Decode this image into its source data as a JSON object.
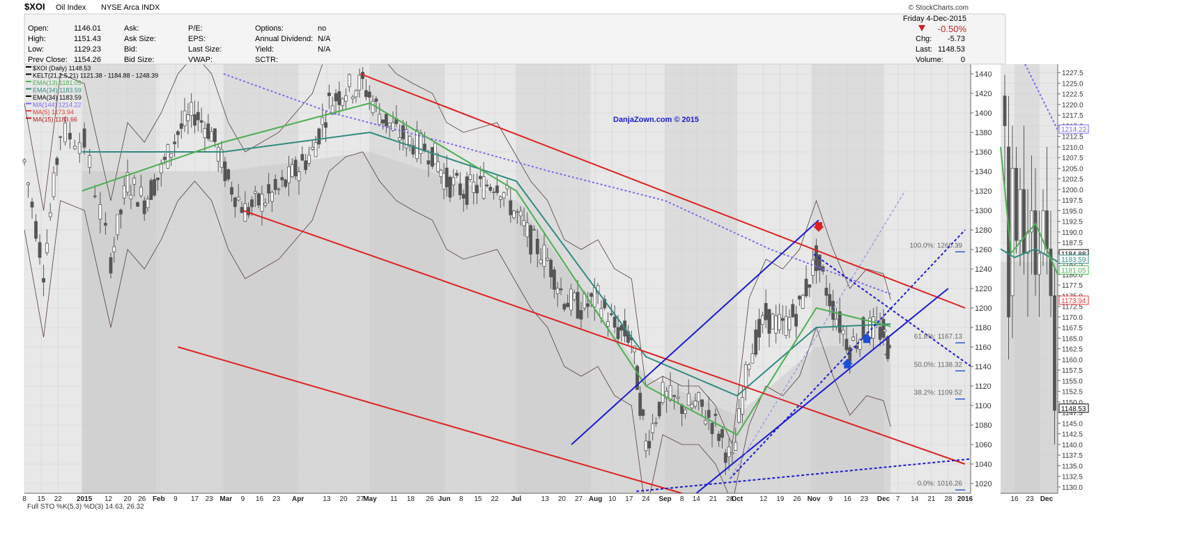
{
  "header": {
    "symbol": "$XOI",
    "name": "Oil Index",
    "exchange": "NYSE Arca INDX",
    "source": "© StockCharts.com",
    "date": "Friday  4-Dec-2015",
    "change_pct": "-0.50%",
    "fields_left": [
      {
        "label": "Open:",
        "value": "1146.01"
      },
      {
        "label": "High:",
        "value": "1151.43"
      },
      {
        "label": "Low:",
        "value": "1129.23"
      },
      {
        "label": "Prev Close:",
        "value": "1154.26"
      }
    ],
    "fields_mid1": [
      {
        "label": "Ask:",
        "value": ""
      },
      {
        "label": "Ask Size:",
        "value": ""
      },
      {
        "label": "Bid:",
        "value": ""
      },
      {
        "label": "Bid Size:",
        "value": ""
      }
    ],
    "fields_mid2": [
      {
        "label": "P/E:",
        "value": ""
      },
      {
        "label": "EPS:",
        "value": ""
      },
      {
        "label": "Last Size:",
        "value": ""
      },
      {
        "label": "VWAP:",
        "value": ""
      }
    ],
    "fields_mid3": [
      {
        "label": "Options:",
        "value": "no"
      },
      {
        "label": "Annual Dividend:",
        "value": "N/A"
      },
      {
        "label": "Yield:",
        "value": "N/A"
      },
      {
        "label": "SCTR:",
        "value": ""
      }
    ],
    "fields_right": [
      {
        "label": "Chg:",
        "value": "-5.73"
      },
      {
        "label": "Last:",
        "value": "1148.53"
      },
      {
        "label": "Volume:",
        "value": "0"
      }
    ]
  },
  "watermark": "DanjaZown.com © 2015",
  "legend": [
    {
      "text": "$XOI (Daily) 1148.53",
      "color": "#000000"
    },
    {
      "text": "KELT(21,2.5,21) 1121.38 - 1184.88 - 1248.39",
      "color": "#000000"
    },
    {
      "text": "EMA(13) 1181.05",
      "color": "#4caf50"
    },
    {
      "text": "EMA(34) 1183.59",
      "color": "#2e8b7f"
    },
    {
      "text": "EMA(34) 1183.59",
      "color": "#000000"
    },
    {
      "text": "MA(144) 1214.22",
      "color": "#7b68ee"
    },
    {
      "text": "MA(5) 1173.94",
      "color": "#e53935"
    },
    {
      "text": "MA(15) 1183.66",
      "color": "#b71c1c"
    }
  ],
  "fib_labels": [
    {
      "text": "100.0%: 1260.39",
      "value": 1260.39
    },
    {
      "text": "61.8%: 1167.13",
      "value": 1167.13
    },
    {
      "text": "50.0%: 1138.32",
      "value": 1138.32
    },
    {
      "text": "38.2%: 1109.52",
      "value": 1109.52
    },
    {
      "text": "0.0%: 1016.26",
      "value": 1016.26
    }
  ],
  "x_tick_labels": [
    "8",
    "15",
    "22",
    "2015",
    "12",
    "20",
    "26",
    "Feb",
    "9",
    "17",
    "23",
    "Mar",
    "9",
    "16",
    "23",
    "Apr",
    "13",
    "20",
    "27",
    "May",
    "11",
    "18",
    "26",
    "Jun",
    "8",
    "15",
    "22",
    "Jul",
    "13",
    "20",
    "27",
    "Aug",
    "10",
    "17",
    "24",
    "Sep",
    "8",
    "14",
    "21",
    "28",
    "Oct",
    "12",
    "19",
    "26",
    "Nov",
    "9",
    "16",
    "23",
    "Dec",
    "7",
    "14",
    "21",
    "28",
    "2016"
  ],
  "bottom_label": "Full STO %K(5,3) %D(3) 14.63, 26.32",
  "inset": {
    "x_tick_labels": [
      "16",
      "23",
      "Dec"
    ],
    "y_ticks": [
      "1227.5",
      "1225.0",
      "1222.5",
      "1220.0",
      "1217.5",
      "1215.0",
      "1212.5",
      "1210.0",
      "1207.5",
      "1205.0",
      "1202.5",
      "1200.0",
      "1197.5",
      "1195.0",
      "1192.5",
      "1190.0",
      "1187.5",
      "1185.0",
      "1182.5",
      "1180.0",
      "1177.5",
      "1175.0",
      "1172.5",
      "1170.0",
      "1167.5",
      "1165.0",
      "1162.5",
      "1160.0",
      "1157.5",
      "1155.0",
      "1152.5",
      "1150.0",
      "1147.5",
      "1145.0",
      "1142.5",
      "1140.0",
      "1137.5",
      "1135.0",
      "1132.5",
      "1130.0"
    ],
    "ymin": 1128.5,
    "ymax": 1229.5,
    "tags": [
      {
        "text": "1214.22",
        "value": 1214.22,
        "color": "#7b68ee"
      },
      {
        "text": "1184.88",
        "value": 1184.88,
        "color": "#000000"
      },
      {
        "text": "1183.59",
        "value": 1183.59,
        "color": "#2e8b7f"
      },
      {
        "text": "1181.05",
        "value": 1181.05,
        "color": "#4caf50"
      },
      {
        "text": "1173.94",
        "value": 1173.94,
        "color": "#e53935"
      },
      {
        "text": "1148.53",
        "value": 1148.53,
        "color": "#000000"
      }
    ]
  },
  "colors": {
    "bg_shade": "#e8e8e8",
    "bg_dark": "#c8c8c8",
    "candle": "#555555",
    "channel_red": "#e02020",
    "channel_blue": "#1a1ad6",
    "ema13": "#4caf50",
    "ema34": "#2e8b7f",
    "ma144": "#7b68ee",
    "kelt": "#5a3a3a",
    "arrow_red": "#e02020",
    "arrow_blue": "#1a4fd6",
    "down": "#cc2222"
  },
  "chart_data": {
    "type": "line",
    "title": "$XOI Oil Index NYSE Arca INDX",
    "x_range": [
      "2014-12-08",
      "2016-01-04"
    ],
    "y_range": [
      1010,
      1450
    ],
    "y_ticks": [
      1020,
      1040,
      1060,
      1080,
      1100,
      1120,
      1140,
      1160,
      1180,
      1200,
      1220,
      1240,
      1260,
      1280,
      1300,
      1320,
      1340,
      1360,
      1380,
      1400,
      1420,
      1440
    ],
    "series": [
      {
        "name": "$XOI (Daily) 1148.53",
        "x": [
          "2014-12-08",
          "2014-12-16",
          "2014-12-23",
          "2015-01-02",
          "2015-01-13",
          "2015-01-20",
          "2015-01-27",
          "2015-02-03",
          "2015-02-10",
          "2015-02-17",
          "2015-02-24",
          "2015-03-03",
          "2015-03-10",
          "2015-03-17",
          "2015-03-24",
          "2015-03-31",
          "2015-04-07",
          "2015-04-14",
          "2015-04-21",
          "2015-04-28",
          "2015-05-05",
          "2015-05-12",
          "2015-05-19",
          "2015-05-27",
          "2015-06-02",
          "2015-06-09",
          "2015-06-16",
          "2015-06-23",
          "2015-06-30",
          "2015-07-07",
          "2015-07-14",
          "2015-07-21",
          "2015-07-28",
          "2015-08-04",
          "2015-08-11",
          "2015-08-18",
          "2015-08-24",
          "2015-08-31",
          "2015-09-08",
          "2015-09-15",
          "2015-09-22",
          "2015-09-29",
          "2015-10-06",
          "2015-10-13",
          "2015-10-20",
          "2015-10-27",
          "2015-11-03",
          "2015-11-10",
          "2015-11-17",
          "2015-11-24",
          "2015-12-01",
          "2015-12-04"
        ],
        "y": [
          1350,
          1240,
          1380,
          1370,
          1250,
          1330,
          1310,
          1340,
          1380,
          1400,
          1380,
          1330,
          1300,
          1310,
          1320,
          1340,
          1360,
          1410,
          1425,
          1430,
          1400,
          1380,
          1370,
          1360,
          1330,
          1320,
          1325,
          1330,
          1300,
          1270,
          1250,
          1210,
          1200,
          1210,
          1180,
          1170,
          1060,
          1110,
          1100,
          1100,
          1080,
          1040,
          1150,
          1190,
          1180,
          1200,
          1250,
          1200,
          1160,
          1180,
          1175,
          1148.53
        ]
      },
      {
        "name": "MA(144) 1214.22",
        "x": [
          "2015-03-01",
          "2015-04-15",
          "2015-06-01",
          "2015-07-15",
          "2015-09-01",
          "2015-10-15",
          "2015-12-04"
        ],
        "y": [
          1440,
          1400,
          1370,
          1340,
          1310,
          1260,
          1214.22
        ]
      },
      {
        "name": "EMA(34) 1183.59",
        "x": [
          "2015-01-01",
          "2015-03-01",
          "2015-05-01",
          "2015-07-01",
          "2015-08-24",
          "2015-10-01",
          "2015-11-03",
          "2015-12-04"
        ],
        "y": [
          1360,
          1360,
          1380,
          1330,
          1150,
          1110,
          1180,
          1183.59
        ]
      },
      {
        "name": "EMA(13) 1181.05",
        "x": [
          "2015-01-01",
          "2015-03-01",
          "2015-05-01",
          "2015-07-01",
          "2015-08-24",
          "2015-10-01",
          "2015-11-03",
          "2015-12-04"
        ],
        "y": [
          1320,
          1370,
          1410,
          1320,
          1120,
          1070,
          1200,
          1181.05
        ]
      }
    ],
    "trendlines": [
      {
        "name": "red upper",
        "color": "#e02020",
        "x": [
          "2015-04-27",
          "2016-01-04"
        ],
        "y": [
          1440,
          1200
        ]
      },
      {
        "name": "red middle",
        "color": "#e02020",
        "x": [
          "2015-03-09",
          "2016-01-04"
        ],
        "y": [
          1300,
          1040
        ]
      },
      {
        "name": "red lower",
        "color": "#e02020",
        "x": [
          "2015-02-10",
          "2015-09-08"
        ],
        "y": [
          1160,
          1010
        ]
      },
      {
        "name": "blue channel upper",
        "color": "#1a1ad6",
        "x": [
          "2015-07-24",
          "2015-11-04"
        ],
        "y": [
          1060,
          1290
        ]
      },
      {
        "name": "blue channel lower",
        "color": "#1a1ad6",
        "x": [
          "2015-09-14",
          "2015-12-28"
        ],
        "y": [
          1010,
          1220
        ]
      }
    ]
  }
}
